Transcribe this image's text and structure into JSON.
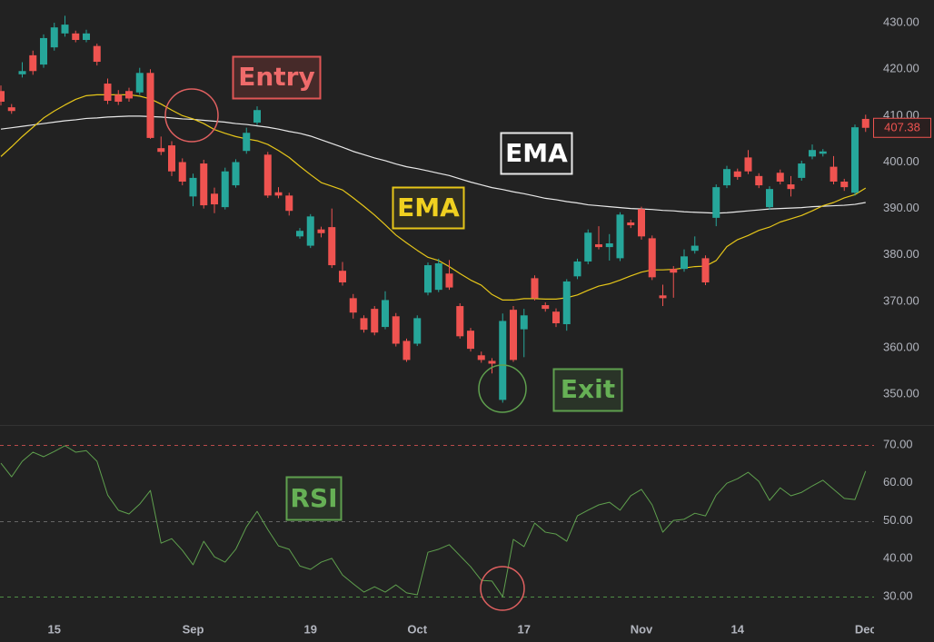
{
  "chart_data": [
    {
      "type": "candlestick",
      "up_color": "#26a69a",
      "down_color": "#ef5350",
      "open": [
        415.3,
        411.8,
        418.9,
        423.0,
        421.0,
        424.7,
        427.7,
        427.7,
        426.3,
        425.0,
        416.9,
        414.5,
        415.3,
        415.0,
        419.2,
        403.0,
        403.6,
        400.0,
        392.6,
        399.7,
        393.2,
        390.3,
        395.0,
        402.4,
        408.5,
        401.6,
        393.5,
        392.8,
        384.0,
        382.0,
        385.5,
        386.0,
        376.6,
        370.7,
        366.4,
        368.4,
        364.5,
        366.8,
        361.5,
        360.9,
        371.9,
        372.5,
        376.0,
        369.0,
        363.7,
        358.4,
        357.2,
        348.8,
        368.2,
        364.0,
        375.0,
        369.2,
        367.8,
        365.1,
        375.4,
        378.6,
        382.3,
        381.7,
        379.3,
        387.0,
        389.9,
        383.6,
        371.3,
        377.0,
        377.0,
        380.9,
        379.3,
        388.0,
        395.0,
        398.0,
        401.0,
        397.0,
        390.3,
        397.7,
        395.2,
        396.6,
        401.2,
        401.8,
        399.0,
        395.8,
        393.4,
        409.3
      ],
      "high": [
        416.5,
        412.5,
        421.5,
        424,
        427.5,
        430,
        431.5,
        428.3,
        428.5,
        425.5,
        418,
        415.5,
        416,
        420.3,
        420,
        405.5,
        404.5,
        400.8,
        397.5,
        400.5,
        394.5,
        398.8,
        400.6,
        407.4,
        412,
        402.2,
        394.6,
        393.4,
        385.8,
        388.8,
        386.1,
        390,
        378.5,
        371.6,
        367,
        369,
        372.2,
        367.5,
        362,
        367,
        378.4,
        379.2,
        378.9,
        369.6,
        364.3,
        359.2,
        357.8,
        367.4,
        369,
        368.4,
        375.6,
        369.8,
        368.5,
        374.8,
        379.2,
        385.5,
        386.2,
        384.5,
        389.2,
        387.6,
        390.4,
        384.2,
        373.6,
        377.6,
        381.2,
        384,
        379.9,
        395.2,
        399.2,
        398.6,
        402.6,
        397.6,
        394.8,
        398.4,
        397,
        400.3,
        403.8,
        402.8,
        401.3,
        396.4,
        408.1,
        410.2
      ],
      "low": [
        412.2,
        410.4,
        418.2,
        418.8,
        420.3,
        424,
        427,
        425.8,
        425.8,
        420.8,
        412.5,
        412.3,
        413,
        414.5,
        405,
        401.5,
        397,
        395,
        390.5,
        390,
        389,
        389.8,
        394.5,
        401.8,
        408,
        392.3,
        392.2,
        388.5,
        383.5,
        381.5,
        383.8,
        377.2,
        373.4,
        366.3,
        363.3,
        362.7,
        364,
        360.3,
        357,
        360.4,
        371.3,
        372,
        372.5,
        362,
        359.2,
        356.8,
        354.5,
        348.2,
        357,
        358,
        370.2,
        367.8,
        364.5,
        363.7,
        374.8,
        378,
        381.2,
        378.8,
        378.7,
        385.8,
        383.3,
        374.6,
        369,
        370.8,
        376.4,
        380.3,
        373.5,
        386.2,
        394.4,
        396.2,
        397.4,
        394.4,
        389.7,
        395.2,
        392.6,
        396,
        400.6,
        401.2,
        395.2,
        393.8,
        392.8,
        406.5
      ],
      "close": [
        413.0,
        411.0,
        419.6,
        419.6,
        426.7,
        429.0,
        429.6,
        426.3,
        427.7,
        421.6,
        413.2,
        413.0,
        413.7,
        419.2,
        405.2,
        402.2,
        398.0,
        395.8,
        396.6,
        390.7,
        390.9,
        398.0,
        400.0,
        406.3,
        411.2,
        392.8,
        392.8,
        389.5,
        385.2,
        388.3,
        384.7,
        377.8,
        374.1,
        367.6,
        363.9,
        363.3,
        370.3,
        360.9,
        357.4,
        366.4,
        377.8,
        378.2,
        373.0,
        362.5,
        359.8,
        357.4,
        356.6,
        365.8,
        357.4,
        367.0,
        370.7,
        368.4,
        365.3,
        374.3,
        378.6,
        384.8,
        381.7,
        382.5,
        388.7,
        386.4,
        384.0,
        375.2,
        370.7,
        376.2,
        379.7,
        382.0,
        374.1,
        394.6,
        398.5,
        396.8,
        398.0,
        395.0,
        394.2,
        395.8,
        394.2,
        399.7,
        402.6,
        402.3,
        395.8,
        394.6,
        407.5,
        407.38
      ],
      "series": [
        {
          "name": "EMA",
          "color": "#e6c619",
          "values": [
            401.2,
            403.3,
            405.5,
            407.5,
            409.5,
            411,
            412.3,
            413.5,
            414.3,
            414.5,
            414.5,
            414.5,
            414.5,
            414.2,
            413.6,
            412.5,
            411.2,
            410,
            409.3,
            408.3,
            407,
            406.2,
            405.5,
            405,
            404.6,
            403.8,
            402.5,
            401,
            399.1,
            397.3,
            395.6,
            394.8,
            394,
            392.3,
            390.5,
            388.6,
            386.5,
            384.3,
            382.6,
            381,
            379.5,
            378.8,
            377.5,
            376,
            374.6,
            373.5,
            371.5,
            370.3,
            370.3,
            370.6,
            370.6,
            370.5,
            370.5,
            370.8,
            371.4,
            372.4,
            373.3,
            373.8,
            374.6,
            375.5,
            376.3,
            376.8,
            376.8,
            376.9,
            377.2,
            377.5,
            377.6,
            378.8,
            381.8,
            383.3,
            384.2,
            385.3,
            386,
            387.1,
            387.8,
            388.5,
            389.5,
            390.6,
            391.3,
            392.3,
            393,
            394.4
          ]
        },
        {
          "name": "EMA",
          "color": "#e8e8e8",
          "values": [
            407.1,
            407.4,
            407.7,
            408,
            408.3,
            408.6,
            408.9,
            409.1,
            409.4,
            409.5,
            409.7,
            409.8,
            409.9,
            409.9,
            409.8,
            409.7,
            409.5,
            409.3,
            409.2,
            409,
            408.8,
            408.6,
            408.3,
            408.1,
            407.8,
            407.5,
            407.1,
            406.6,
            406.2,
            405.6,
            404.8,
            404,
            403.2,
            402.3,
            401.6,
            400.9,
            400.3,
            399.6,
            399,
            398.6,
            398.1,
            397.6,
            397.1,
            396.4,
            395.7,
            395.1,
            394.5,
            394.1,
            393.6,
            393.2,
            392.7,
            392.2,
            391.9,
            391.5,
            391.2,
            390.8,
            390.6,
            390.4,
            390.2,
            390,
            389.9,
            389.8,
            389.6,
            389.5,
            389.3,
            389.2,
            389.1,
            389,
            389.1,
            389.3,
            389.5,
            389.7,
            389.9,
            390,
            390.1,
            390.2,
            390.4,
            390.5,
            390.6,
            390.7,
            390.9,
            391.3
          ]
        }
      ],
      "annotations": [
        "Entry",
        "Exit"
      ],
      "ylim": [
        343.4,
        434.9
      ],
      "yticks": [
        {
          "value": 350,
          "label": "350.00"
        },
        {
          "value": 360,
          "label": "360.00"
        },
        {
          "value": 370,
          "label": "370.00"
        },
        {
          "value": 380,
          "label": "380.00"
        },
        {
          "value": 390,
          "label": "390.00"
        },
        {
          "value": 400,
          "label": "400.00"
        },
        {
          "value": 410,
          "label": "410.00"
        },
        {
          "value": 420,
          "label": "420.00"
        },
        {
          "value": 430,
          "label": "430.00"
        }
      ]
    },
    {
      "type": "line",
      "categories": [
        null,
        null,
        null,
        null,
        null,
        "15",
        null,
        null,
        null,
        null,
        null,
        null,
        null,
        null,
        null,
        null,
        null,
        null,
        "Sep",
        null,
        null,
        null,
        null,
        null,
        null,
        null,
        null,
        null,
        null,
        "19",
        null,
        null,
        null,
        null,
        null,
        null,
        null,
        null,
        null,
        "Oct",
        null,
        null,
        null,
        null,
        null,
        null,
        null,
        null,
        null,
        "17",
        null,
        null,
        null,
        null,
        null,
        null,
        null,
        null,
        null,
        null,
        "Nov",
        null,
        null,
        null,
        null,
        null,
        null,
        null,
        null,
        "14",
        null,
        null,
        null,
        null,
        null,
        null,
        null,
        null,
        null,
        null,
        null,
        "Dec"
      ],
      "series": [
        {
          "name": "RSI",
          "color": "#5fa04e",
          "values": [
            65.2,
            61.6,
            65.7,
            68.1,
            66.9,
            68.3,
            69.8,
            68.1,
            68.5,
            65.7,
            56.8,
            52.8,
            51.8,
            54.4,
            58,
            44.1,
            45.3,
            42.2,
            38.4,
            44.6,
            40.5,
            39.1,
            42.5,
            48.4,
            52.5,
            47.7,
            43.4,
            42.5,
            38.1,
            37.2,
            39.1,
            40.1,
            35.7,
            33.4,
            31.2,
            32.6,
            31.2,
            33.1,
            31,
            30.5,
            41.7,
            42.5,
            43.7,
            40.8,
            37.9,
            34.3,
            34.1,
            30,
            45.1,
            43.2,
            49.4,
            47,
            46.5,
            44.6,
            51.3,
            52.8,
            54.2,
            54.9,
            52.8,
            56.6,
            58.3,
            54.2,
            47,
            50.1,
            50.4,
            52,
            51.3,
            56.8,
            59.9,
            61.1,
            62.8,
            60.4,
            55.4,
            58.7,
            56.6,
            57.5,
            59.2,
            60.7,
            58.3,
            55.9,
            55.6,
            63.1
          ]
        }
      ],
      "hlines": [
        {
          "value": 70,
          "color": "#b84a4a"
        },
        {
          "value": 50,
          "color": "#666666"
        },
        {
          "value": 30,
          "color": "#4f8f45"
        }
      ],
      "ylim": [
        24.5,
        74.8
      ],
      "yticks": [
        {
          "value": 30,
          "label": "30.00"
        },
        {
          "value": 40,
          "label": "40.00"
        },
        {
          "value": 50,
          "label": "50.00"
        },
        {
          "value": 60,
          "label": "60.00"
        },
        {
          "value": 70,
          "label": "70.00"
        }
      ]
    }
  ]
}
